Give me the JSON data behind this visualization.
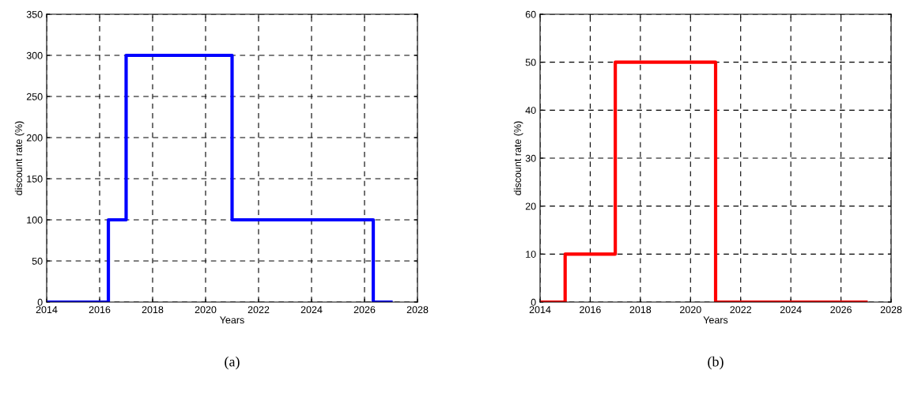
{
  "chart_data": [
    {
      "type": "step",
      "xlabel": "Years",
      "ylabel": "discount rate (%)",
      "annotations": [
        "(a)"
      ],
      "x": [
        2014,
        2016.33,
        2017,
        2021,
        2026.33,
        2027
      ],
      "series": [
        {
          "color": "#0000ff",
          "values": [
            0,
            100,
            300,
            100,
            0,
            0
          ]
        }
      ],
      "xlim": [
        2014,
        2028
      ],
      "xticks": [
        2014,
        2016,
        2018,
        2020,
        2022,
        2024,
        2026,
        2028
      ],
      "ylim": [
        0,
        350
      ],
      "yticks": [
        0,
        50,
        100,
        150,
        200,
        250,
        300,
        350
      ],
      "grid": true,
      "line_style": "solid"
    },
    {
      "type": "step",
      "xlabel": "Years",
      "ylabel": "discount rate (%)",
      "annotations": [
        "(b)"
      ],
      "x": [
        2014,
        2015,
        2017,
        2021,
        2027
      ],
      "series": [
        {
          "color": "#ff0000",
          "values": [
            0,
            10,
            50,
            0,
            0
          ]
        }
      ],
      "xlim": [
        2014,
        2028
      ],
      "xticks": [
        2014,
        2016,
        2018,
        2020,
        2022,
        2024,
        2026,
        2028
      ],
      "ylim": [
        0,
        60
      ],
      "yticks": [
        0,
        10,
        20,
        30,
        40,
        50,
        60
      ],
      "grid": true,
      "line_style": "solid"
    }
  ]
}
